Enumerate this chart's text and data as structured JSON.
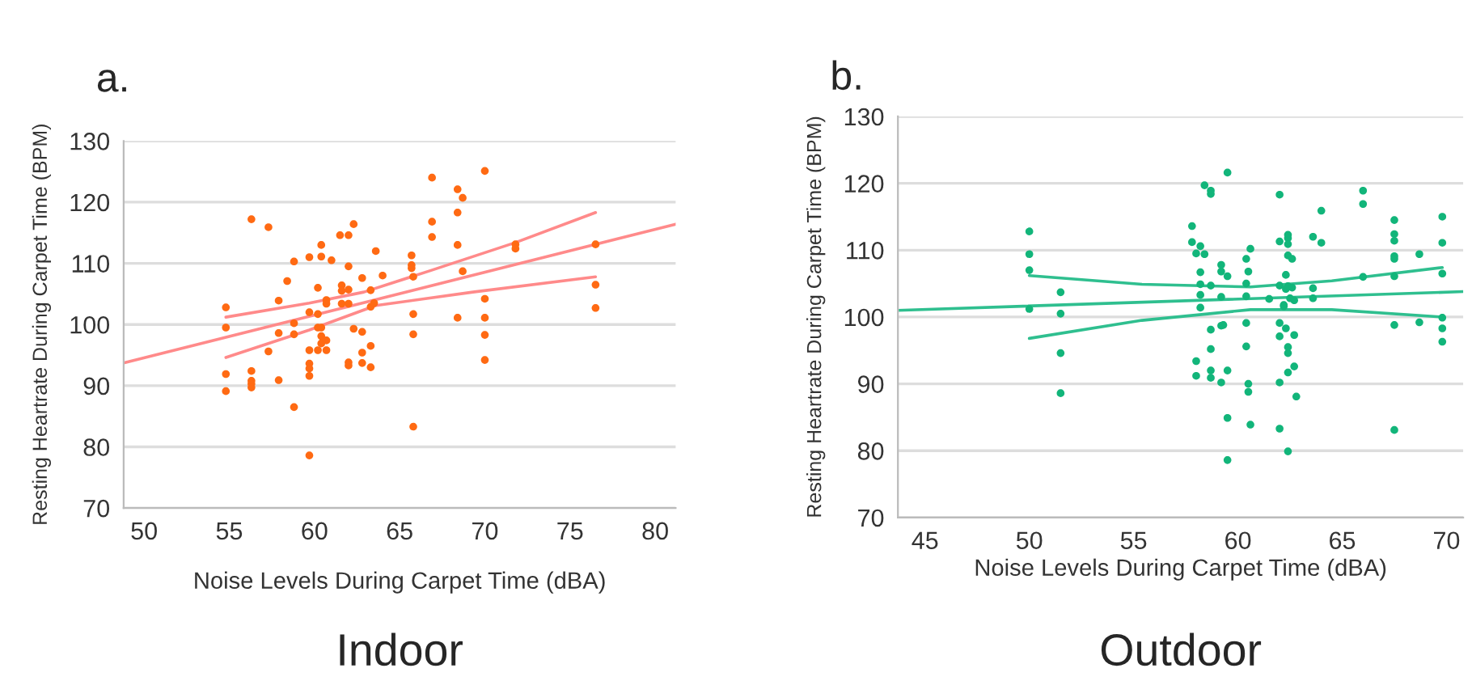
{
  "chart_data": [
    {
      "type": "scatter",
      "title": "a.",
      "xlabel": "Noise Levels During Carpet Time (dBA)",
      "ylabel": "Resting Heartrate During Carpet Time (BPM)",
      "annotations": [
        "Indoor"
      ],
      "xlim": [
        48.8,
        81.2
      ],
      "ylim": [
        70,
        130
      ],
      "xticks": [
        50,
        55,
        60,
        65,
        70,
        75,
        80
      ],
      "yticks": [
        70,
        80,
        90,
        100,
        110,
        120,
        130
      ],
      "grid": "y",
      "series": [
        {
          "marker": "circle",
          "color": "#ff6a13",
          "x": [
            54.8,
            54.8,
            54.8,
            54.8,
            56.3,
            56.3,
            56.3,
            56.3,
            56.3,
            57.3,
            57.3,
            57.9,
            57.9,
            57.9,
            58.4,
            58.8,
            58.8,
            58.8,
            58.8,
            59.7,
            59.7,
            59.7,
            59.7,
            59.7,
            59.7,
            59.7,
            60.2,
            60.2,
            60.2,
            60.2,
            60.4,
            60.4,
            60.4,
            60.4,
            60.4,
            60.7,
            60.7,
            60.7,
            60.7,
            61.0,
            61.5,
            61.6,
            61.6,
            61.6,
            62.0,
            62.0,
            62.0,
            62.0,
            62.0,
            62.0,
            62.3,
            62.3,
            62.8,
            62.8,
            62.8,
            62.8,
            63.3,
            63.3,
            63.3,
            63.3,
            63.5,
            63.6,
            64.0,
            65.7,
            65.7,
            65.7,
            65.8,
            65.8,
            65.8,
            65.8,
            66.9,
            66.9,
            66.9,
            68.4,
            68.4,
            68.4,
            68.4,
            68.7,
            68.7,
            70.0,
            70.0,
            70.0,
            70.0,
            70.0,
            71.8,
            71.8,
            76.5,
            76.5,
            76.5
          ],
          "values": [
            102.8,
            99.5,
            91.9,
            89.1,
            117.2,
            92.4,
            90.8,
            90.3,
            89.7,
            115.9,
            95.6,
            103.9,
            98.6,
            90.9,
            107.1,
            110.3,
            100.2,
            98.4,
            86.5,
            111.0,
            102.0,
            95.8,
            93.6,
            92.8,
            91.6,
            78.6,
            106.0,
            101.7,
            99.5,
            95.8,
            113.0,
            111.1,
            99.5,
            98.1,
            96.9,
            104.0,
            103.4,
            97.4,
            95.8,
            110.5,
            114.6,
            106.4,
            105.5,
            103.4,
            114.6,
            109.5,
            105.7,
            103.4,
            93.8,
            93.3,
            116.4,
            99.3,
            107.6,
            98.8,
            95.4,
            93.7,
            105.6,
            102.9,
            96.5,
            93.0,
            103.5,
            112.0,
            108.0,
            111.3,
            109.7,
            109.2,
            107.8,
            101.7,
            98.4,
            83.3,
            124.0,
            116.8,
            114.3,
            122.1,
            118.3,
            113.0,
            101.1,
            120.7,
            108.7,
            125.1,
            104.2,
            101.1,
            98.3,
            94.2,
            113.1,
            112.4,
            113.1,
            106.5,
            102.7
          ]
        },
        {
          "type": "line",
          "color": "#ff8a8a",
          "x": [
            48.8,
            81.2
          ],
          "values": [
            93.7,
            116.4
          ]
        },
        {
          "type": "line",
          "color": "#ff8a8a",
          "x": [
            54.8,
            59.7,
            62.9,
            66.8,
            71.8,
            76.5
          ],
          "values": [
            101.2,
            103.5,
            105.3,
            108.8,
            113.4,
            118.3
          ]
        },
        {
          "type": "line",
          "color": "#ff8a8a",
          "x": [
            54.8,
            59.7,
            63.6,
            69.3,
            76.5
          ],
          "values": [
            94.6,
            99.1,
            103.1,
            105.3,
            107.8
          ]
        }
      ]
    },
    {
      "type": "scatter",
      "title": "b.",
      "xlabel": "Noise Levels During Carpet Time (dBA)",
      "ylabel": "Resting Heartrate During Carpet Time (BPM)",
      "annotations": [
        "Outdoor"
      ],
      "xlim": [
        43.7,
        70.8
      ],
      "ylim": [
        70,
        130
      ],
      "xticks": [
        45,
        50,
        55,
        60,
        65,
        70
      ],
      "yticks": [
        70,
        80,
        90,
        100,
        110,
        120,
        130
      ],
      "grid": "y",
      "series": [
        {
          "marker": "circle",
          "color": "#12b57a",
          "x": [
            50.0,
            50.0,
            50.0,
            50.0,
            51.5,
            51.5,
            51.5,
            51.5,
            57.8,
            57.8,
            58.0,
            58.0,
            58.0,
            58.2,
            58.2,
            58.2,
            58.2,
            58.2,
            58.4,
            58.4,
            58.7,
            58.7,
            58.7,
            58.7,
            58.7,
            58.7,
            58.7,
            59.2,
            59.2,
            59.2,
            59.2,
            59.2,
            59.3,
            59.5,
            59.5,
            59.5,
            59.5,
            59.5,
            60.4,
            60.4,
            60.4,
            60.4,
            60.4,
            60.5,
            60.5,
            60.5,
            60.6,
            60.6,
            61.5,
            62.0,
            62.0,
            62.0,
            62.0,
            62.0,
            62.0,
            62.0,
            62.2,
            62.2,
            62.3,
            62.3,
            62.3,
            62.4,
            62.4,
            62.4,
            62.4,
            62.4,
            62.4,
            62.4,
            62.4,
            62.4,
            62.5,
            62.6,
            62.6,
            62.7,
            62.7,
            62.7,
            62.8,
            63.6,
            63.6,
            63.6,
            64.0,
            64.0,
            66.0,
            66.0,
            66.0,
            67.5,
            67.5,
            67.5,
            67.5,
            67.5,
            67.5,
            67.5,
            67.5,
            68.7,
            68.7,
            69.8,
            69.8,
            69.8,
            69.8,
            69.8,
            69.8
          ],
          "values": [
            112.8,
            109.4,
            107.0,
            101.2,
            103.7,
            100.5,
            94.6,
            88.6,
            113.6,
            111.2,
            109.5,
            93.4,
            91.2,
            110.6,
            106.7,
            104.9,
            103.3,
            101.4,
            119.7,
            109.4,
            118.9,
            118.4,
            104.7,
            98.1,
            95.2,
            92.0,
            90.9,
            107.8,
            106.8,
            103.0,
            98.7,
            90.2,
            98.8,
            121.6,
            106.1,
            92.0,
            84.9,
            78.6,
            108.7,
            105.0,
            103.1,
            99.1,
            95.6,
            106.8,
            90.0,
            88.8,
            110.2,
            83.9,
            102.7,
            118.3,
            111.3,
            104.7,
            99.1,
            97.1,
            90.2,
            83.3,
            101.8,
            101.6,
            106.3,
            104.2,
            98.3,
            94.6,
            112.3,
            111.8,
            110.9,
            109.2,
            104.6,
            95.5,
            91.7,
            79.9,
            102.8,
            108.7,
            104.4,
            102.5,
            97.3,
            92.6,
            88.1,
            112.0,
            104.3,
            102.8,
            115.9,
            111.1,
            118.9,
            116.9,
            106.0,
            114.5,
            112.4,
            111.4,
            109.1,
            108.7,
            106.1,
            98.8,
            83.1,
            109.4,
            99.2,
            115.0,
            111.1,
            106.5,
            99.9,
            98.3,
            96.3
          ]
        },
        {
          "type": "line",
          "color": "#2fbf8f",
          "x": [
            43.7,
            70.8
          ],
          "values": [
            101.0,
            103.8
          ]
        },
        {
          "type": "line",
          "color": "#2fbf8f",
          "x": [
            50.0,
            55.4,
            60.6,
            64.5,
            69.8
          ],
          "values": [
            106.2,
            104.9,
            104.5,
            105.4,
            107.4
          ]
        },
        {
          "type": "line",
          "color": "#2fbf8f",
          "x": [
            50.0,
            55.4,
            60.6,
            64.5,
            69.8
          ],
          "values": [
            96.8,
            99.5,
            101.1,
            101.1,
            100.0
          ]
        }
      ]
    }
  ]
}
